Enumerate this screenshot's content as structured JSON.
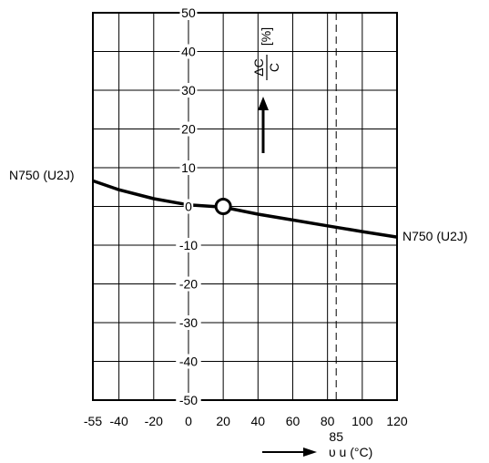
{
  "chart_data": {
    "type": "line",
    "xlabel": "υ u (°C)",
    "xlim": [
      -55,
      120
    ],
    "ylim": [
      -50,
      50
    ],
    "x_ticks": [
      {
        "value": -55,
        "label": "-55"
      },
      {
        "value": -40,
        "label": "-40"
      },
      {
        "value": -20,
        "label": "-20"
      },
      {
        "value": 0,
        "label": "0"
      },
      {
        "value": 20,
        "label": "20"
      },
      {
        "value": 40,
        "label": "40"
      },
      {
        "value": 60,
        "label": "60"
      },
      {
        "value": 80,
        "label": "80"
      },
      {
        "value": 100,
        "label": "100"
      },
      {
        "value": 120,
        "label": "120"
      }
    ],
    "y_ticks": [
      {
        "value": 50,
        "label": "50"
      },
      {
        "value": 40,
        "label": "40"
      },
      {
        "value": 30,
        "label": "30"
      },
      {
        "value": 20,
        "label": "20"
      },
      {
        "value": 10,
        "label": "10"
      },
      {
        "value": 0,
        "label": "0"
      },
      {
        "value": -10,
        "label": "-10"
      },
      {
        "value": -20,
        "label": "-20"
      },
      {
        "value": -30,
        "label": "-30"
      },
      {
        "value": -40,
        "label": "-40"
      },
      {
        "value": -50,
        "label": "-50"
      }
    ],
    "ylabel_top": "ΔC",
    "ylabel_bottom": "C",
    "ylabel_unit": "[%]",
    "series": [
      {
        "name": "N750 (U2J)",
        "x": [
          -55,
          -40,
          -20,
          0,
          20,
          40,
          60,
          80,
          100,
          120
        ],
        "y": [
          6.6,
          4.3,
          2.0,
          0.4,
          -0.2,
          -2.0,
          -3.5,
          -5.0,
          -6.5,
          -7.9
        ]
      }
    ],
    "reference_point": {
      "x": 20,
      "y": 0
    },
    "dashed_line": {
      "x": 85,
      "label": "85"
    },
    "grid": true,
    "legend": "none"
  }
}
